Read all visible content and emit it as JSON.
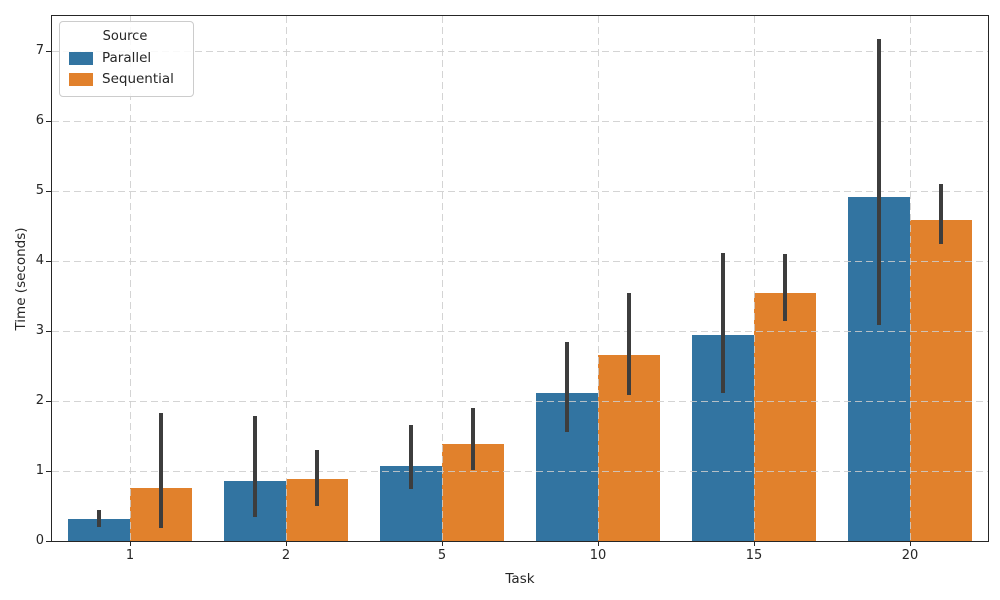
{
  "chart_data": {
    "type": "bar",
    "title": "",
    "xlabel": "Task",
    "ylabel": "Time (seconds)",
    "categories": [
      "1",
      "2",
      "5",
      "10",
      "15",
      "20"
    ],
    "series": [
      {
        "name": "Parallel",
        "color": "#3274a1",
        "values": [
          0.32,
          0.86,
          1.07,
          2.11,
          2.94,
          4.92
        ],
        "err_low": [
          0.2,
          0.34,
          0.74,
          1.56,
          2.12,
          3.09
        ],
        "err_high": [
          0.44,
          1.79,
          1.66,
          2.84,
          4.11,
          7.17
        ]
      },
      {
        "name": "Sequential",
        "color": "#e1812c",
        "values": [
          0.76,
          0.88,
          1.39,
          2.66,
          3.54,
          4.59
        ],
        "err_low": [
          0.19,
          0.5,
          1.01,
          2.08,
          3.15,
          4.24
        ],
        "err_high": [
          1.83,
          1.3,
          1.9,
          3.55,
          4.1,
          5.1
        ]
      }
    ],
    "ylim": [
      0,
      7.5
    ],
    "yticks": [
      0,
      1,
      2,
      3,
      4,
      5,
      6,
      7
    ],
    "grid": {
      "show": true,
      "color": "#cdcdcd",
      "style": "dashed",
      "axes": "both",
      "above_bars": true
    },
    "legend": {
      "title": "Source",
      "position": "upper left"
    },
    "error_bar_color": "#3d3d3d",
    "axis_color": "#262626"
  }
}
